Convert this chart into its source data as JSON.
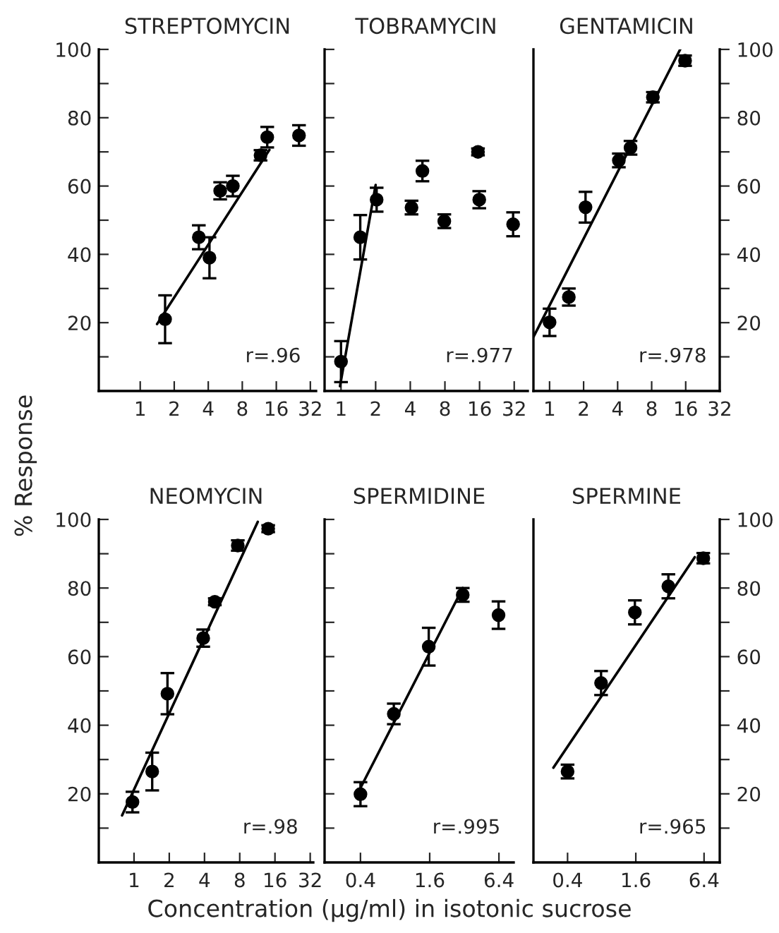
{
  "chart_data": [
    {
      "type": "scatter",
      "title": "STREPTOMYCIN",
      "ylabel": "% Response",
      "log": "x",
      "xlim": [
        0.43,
        36
      ],
      "xticks": [
        1,
        2,
        4,
        8,
        16,
        32
      ],
      "ylim": [
        0,
        100
      ],
      "yticks": [
        {
          "value": 10,
          "label": null
        },
        20,
        {
          "value": 30,
          "label": null
        },
        40,
        {
          "value": 50,
          "label": null
        },
        60,
        {
          "value": 70,
          "label": null
        },
        80,
        {
          "value": 90,
          "label": null
        },
        100
      ],
      "tick_labels": "xy",
      "annotations": [
        "r=.96"
      ],
      "series": [
        {
          "marker": "circle",
          "color": "#000000",
          "x": [
            1.66,
            3.3,
            4.1,
            5.1,
            6.6,
            11.6,
            13.3,
            25.4
          ],
          "values": [
            21,
            45,
            39,
            58.6,
            60,
            69,
            74.3,
            74.8
          ],
          "errors": [
            7,
            3.5,
            6,
            2.5,
            3,
            1.5,
            3,
            3
          ]
        },
        {
          "type": "line",
          "marker": "none",
          "color": "#000000",
          "x": [
            1.41,
            13.9
          ],
          "values": [
            19.6,
            70.6
          ]
        }
      ]
    },
    {
      "type": "scatter",
      "title": "TOBRAMYCIN",
      "log": "x",
      "xlim": [
        0.72,
        42
      ],
      "xticks": [
        1,
        2,
        4,
        8,
        16,
        32
      ],
      "ylim": [
        0,
        100
      ],
      "yticks": [
        {
          "value": 10,
          "label": null
        },
        {
          "value": 20,
          "label": null
        },
        {
          "value": 30,
          "label": null
        },
        {
          "value": 40,
          "label": null
        },
        {
          "value": 50,
          "label": null
        },
        {
          "value": 60,
          "label": null
        },
        {
          "value": 70,
          "label": null
        },
        {
          "value": 80,
          "label": null
        },
        {
          "value": 90,
          "label": null
        },
        {
          "value": 100,
          "label": null
        }
      ],
      "tick_labels": "x",
      "annotations": [
        "r=.977"
      ],
      "series": [
        {
          "marker": "circle",
          "color": "#000000",
          "x": [
            1,
            1.47,
            2.04,
            4.1,
            5.1,
            7.9,
            15.5,
            15.9,
            31.3
          ],
          "values": [
            8.6,
            45,
            56,
            53.7,
            64.4,
            49.7,
            70,
            56,
            48.8
          ],
          "errors": [
            6,
            6.5,
            3.5,
            2,
            3,
            2,
            1,
            2.5,
            3.5
          ]
        },
        {
          "type": "line",
          "marker": "none",
          "color": "#000000",
          "x": [
            0.98,
            2
          ],
          "values": [
            1.4,
            60.3
          ]
        }
      ]
    },
    {
      "type": "scatter",
      "title": "GENTAMICIN",
      "log": "x",
      "xlim": [
        0.72,
        32
      ],
      "xticks": [
        1,
        2,
        4,
        8,
        16,
        32
      ],
      "ylim": [
        0,
        100
      ],
      "yticks": [
        {
          "value": 10,
          "label": null
        },
        20,
        {
          "value": 30,
          "label": null
        },
        40,
        {
          "value": 50,
          "label": null
        },
        60,
        {
          "value": 70,
          "label": null
        },
        80,
        {
          "value": 90,
          "label": null
        },
        100
      ],
      "tick_labels": "xy",
      "annotations": [
        "r=.978"
      ],
      "series": [
        {
          "marker": "circle",
          "color": "#000000",
          "x": [
            1,
            1.48,
            2.08,
            4.1,
            5.2,
            8.2,
            15.8
          ],
          "values": [
            20.1,
            27.5,
            53.8,
            67.5,
            71.2,
            86,
            96.7
          ],
          "errors": [
            4,
            2.5,
            4.5,
            2,
            2,
            1.5,
            1.5
          ]
        },
        {
          "type": "line",
          "marker": "none",
          "color": "#000000",
          "x": [
            0.72,
            14.3
          ],
          "values": [
            15.8,
            100
          ]
        }
      ]
    },
    {
      "type": "scatter",
      "title": "NEOMYCIN",
      "log": "x",
      "xlim": [
        0.5,
        34
      ],
      "xticks": [
        1,
        2,
        4,
        8,
        16,
        32
      ],
      "ylim": [
        0,
        100
      ],
      "yticks": [
        {
          "value": 10,
          "label": null
        },
        20,
        {
          "value": 30,
          "label": null
        },
        40,
        {
          "value": 50,
          "label": null
        },
        60,
        {
          "value": 70,
          "label": null
        },
        80,
        {
          "value": 90,
          "label": null
        },
        100
      ],
      "tick_labels": "xy",
      "annotations": [
        "r=.98"
      ],
      "series": [
        {
          "marker": "circle",
          "color": "#000000",
          "x": [
            0.97,
            1.43,
            1.93,
            3.9,
            4.9,
            7.7,
            14
          ],
          "values": [
            17.6,
            26.5,
            49.2,
            65.4,
            76,
            92.4,
            97.3
          ],
          "errors": [
            3,
            5.5,
            6,
            2.5,
            1,
            1.5,
            1
          ]
        },
        {
          "type": "line",
          "marker": "none",
          "color": "#000000",
          "x": [
            0.79,
            11.4
          ],
          "values": [
            13.7,
            99.3
          ]
        }
      ]
    },
    {
      "type": "scatter",
      "title": "SPERMIDINE",
      "xlabel": "Concentration (μg/ml) in isotonic sucrose",
      "log": "x",
      "xlim": [
        0.195,
        8.6
      ],
      "xticks": [
        0.4,
        1.6,
        6.4
      ],
      "ylim": [
        0,
        100
      ],
      "yticks": [
        {
          "value": 10,
          "label": null
        },
        {
          "value": 20,
          "label": null
        },
        {
          "value": 30,
          "label": null
        },
        {
          "value": 40,
          "label": null
        },
        {
          "value": 50,
          "label": null
        },
        {
          "value": 60,
          "label": null
        },
        {
          "value": 70,
          "label": null
        },
        {
          "value": 80,
          "label": null
        },
        {
          "value": 90,
          "label": null
        },
        {
          "value": 100,
          "label": null
        }
      ],
      "tick_labels": "x",
      "annotations": [
        "r=.995"
      ],
      "series": [
        {
          "marker": "circle",
          "color": "#000000",
          "x": [
            0.4,
            0.78,
            1.57,
            3.1,
            6.35
          ],
          "values": [
            19.9,
            43.3,
            62.9,
            78,
            72.1
          ],
          "errors": [
            3.5,
            3,
            5.5,
            2,
            4
          ]
        },
        {
          "type": "line",
          "marker": "none",
          "color": "#000000",
          "x": [
            0.4,
            3.1
          ],
          "values": [
            21.7,
            80
          ]
        }
      ]
    },
    {
      "type": "scatter",
      "title": "SPERMINE",
      "log": "x",
      "xlim": [
        0.2,
        8.8
      ],
      "xticks": [
        0.4,
        1.6,
        6.4
      ],
      "ylim": [
        0,
        100
      ],
      "yticks": [
        {
          "value": 10,
          "label": null
        },
        20,
        {
          "value": 30,
          "label": null
        },
        40,
        {
          "value": 50,
          "label": null
        },
        60,
        {
          "value": 70,
          "label": null
        },
        80,
        {
          "value": 90,
          "label": null
        },
        100
      ],
      "tick_labels": "xy",
      "annotations": [
        "r=.965"
      ],
      "series": [
        {
          "marker": "circle",
          "color": "#000000",
          "x": [
            0.4,
            0.79,
            1.57,
            3.1,
            6.3
          ],
          "values": [
            26.5,
            52.3,
            72.9,
            80.5,
            88.7
          ],
          "errors": [
            2,
            3.5,
            3.5,
            3.5,
            1.5
          ]
        },
        {
          "type": "line",
          "marker": "none",
          "color": "#000000",
          "x": [
            0.3,
            5.3
          ],
          "values": [
            27.6,
            89
          ]
        }
      ]
    }
  ]
}
